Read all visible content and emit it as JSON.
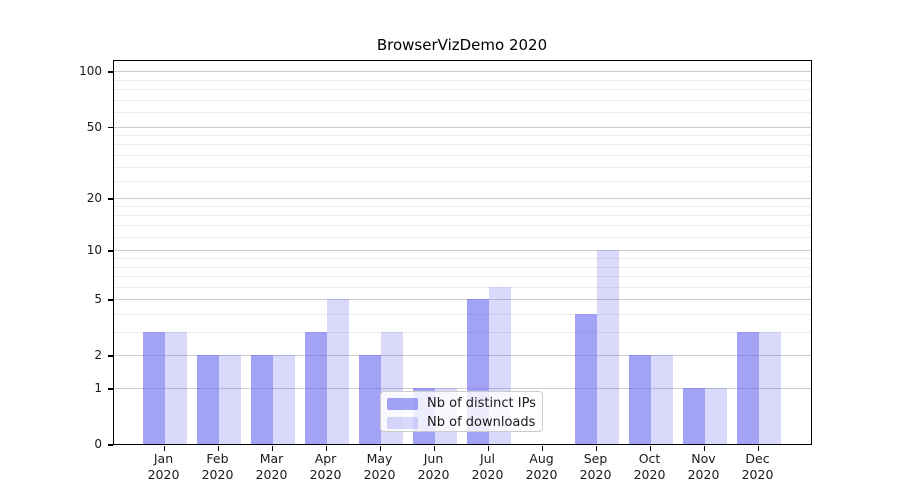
{
  "page": {
    "background": "#ffffff"
  },
  "chart_data": {
    "type": "bar",
    "title": "BrowserVizDemo 2020",
    "categories": [
      "Jan 2020",
      "Feb 2020",
      "Mar 2020",
      "Apr 2020",
      "May 2020",
      "Jun 2020",
      "Jul 2020",
      "Aug 2020",
      "Sep 2020",
      "Oct 2020",
      "Nov 2020",
      "Dec 2020"
    ],
    "series": [
      {
        "name": "Nb of distinct IPs",
        "color": "rgba(102,102,238,0.6)",
        "values": [
          3,
          2,
          2,
          3,
          2,
          1,
          5,
          0,
          4,
          2,
          1,
          3
        ]
      },
      {
        "name": "Nb of downloads",
        "color": "rgba(102,102,238,0.25)",
        "values": [
          3,
          2,
          2,
          5,
          3,
          1,
          6,
          0,
          10,
          2,
          1,
          3
        ]
      }
    ],
    "xlabel": "",
    "ylabel": "",
    "y_axis": {
      "scale": "log1p",
      "tick_values": [
        0,
        1,
        2,
        5,
        10,
        20,
        50,
        100
      ],
      "minor_tick_values": [
        3,
        4,
        6,
        7,
        8,
        9,
        12,
        14,
        16,
        18,
        25,
        30,
        35,
        40,
        45,
        60,
        70,
        80,
        90
      ],
      "range": [
        0,
        114
      ]
    },
    "legend": {
      "position": "lower-center-inside",
      "entries": [
        "Nb of distinct IPs",
        "Nb of downloads"
      ]
    },
    "grid": {
      "horizontal_major": true,
      "horizontal_minor": true
    },
    "colors": {
      "axis": "#000000",
      "major_grid": "#cdcdcd",
      "minor_grid": "#ececec",
      "text": "#1a1a1a",
      "bar_base": "#6666ee"
    }
  }
}
